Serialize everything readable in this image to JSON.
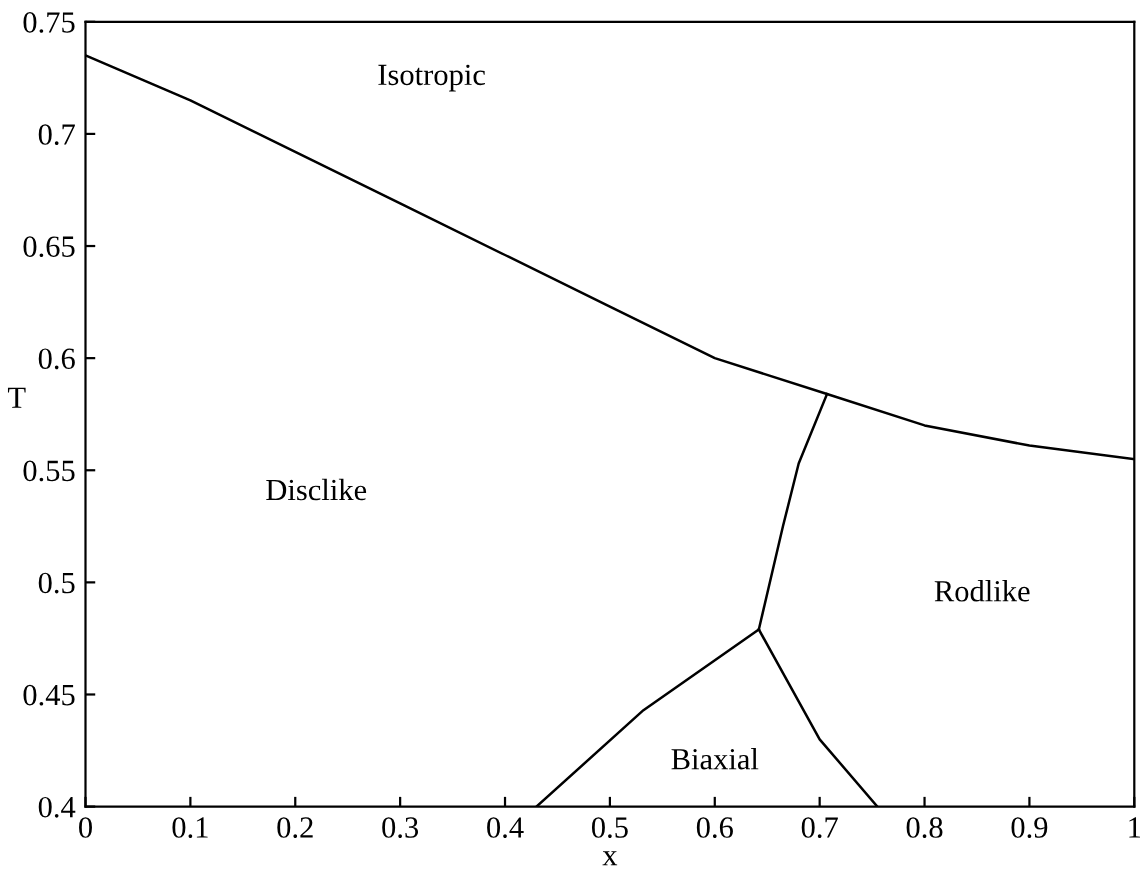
{
  "chart_data": {
    "type": "line",
    "xlabel": "x",
    "ylabel": "T",
    "series": [
      {
        "color": "#000000",
        "x": [
          0,
          0.1,
          0.2,
          0.3,
          0.4,
          0.5,
          0.6,
          0.707,
          0.8,
          0.9,
          1
        ],
        "values": [
          0.735,
          0.715,
          0.692,
          0.669,
          0.646,
          0.623,
          0.6,
          0.584,
          0.57,
          0.561,
          0.555
        ]
      },
      {
        "color": "#000000",
        "x": [
          0.707,
          0.68,
          0.665,
          0.642
        ],
        "values": [
          0.584,
          0.553,
          0.525,
          0.479
        ]
      },
      {
        "color": "#000000",
        "x": [
          0.642,
          0.532,
          0.43
        ],
        "values": [
          0.479,
          0.443,
          0.4
        ]
      },
      {
        "color": "#000000",
        "x": [
          0.642,
          0.7,
          0.755
        ],
        "values": [
          0.479,
          0.43,
          0.4
        ]
      }
    ],
    "annotations": [
      "Isotropic",
      "Disclike",
      "Rodlike",
      "Biaxial"
    ],
    "xlim": [
      0,
      1
    ],
    "ylim": [
      0.4,
      0.75
    ],
    "xticks": [
      0,
      0.1,
      0.2,
      0.3,
      0.4,
      0.5,
      0.6,
      0.7,
      0.8,
      0.9,
      1
    ],
    "yticks": [
      0.4,
      0.45,
      0.5,
      0.55,
      0.6,
      0.65,
      0.7,
      0.75
    ],
    "grid": false,
    "marker": "none",
    "line_style": "solid"
  }
}
